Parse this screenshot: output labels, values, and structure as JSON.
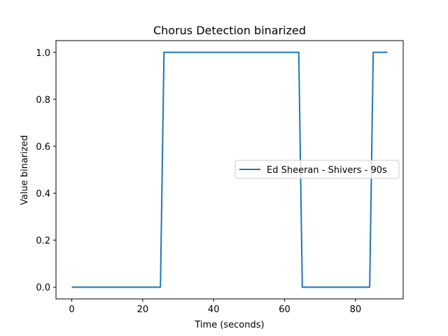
{
  "chart_data": {
    "type": "line",
    "title": "Chorus Detection binarized",
    "xlabel": "Time (seconds)",
    "ylabel": "Value binarized",
    "xlim": [
      -4.45,
      93.45
    ],
    "ylim": [
      -0.05,
      1.05
    ],
    "xticks": [
      0,
      20,
      40,
      60,
      80
    ],
    "yticks": [
      0.0,
      0.2,
      0.4,
      0.6,
      0.8,
      1.0
    ],
    "xtick_labels": [
      "0",
      "20",
      "40",
      "60",
      "80"
    ],
    "ytick_labels": [
      "0.0",
      "0.2",
      "0.4",
      "0.6",
      "0.8",
      "1.0"
    ],
    "grid": false,
    "legend_position": "center-right",
    "series": [
      {
        "name": "Ed Sheeran - Shivers - 90s",
        "color": "#1f77b4",
        "x": [
          0,
          25,
          26,
          64,
          65,
          84,
          85,
          89
        ],
        "y": [
          0,
          0,
          1,
          1,
          0,
          0,
          1,
          1
        ]
      }
    ]
  }
}
